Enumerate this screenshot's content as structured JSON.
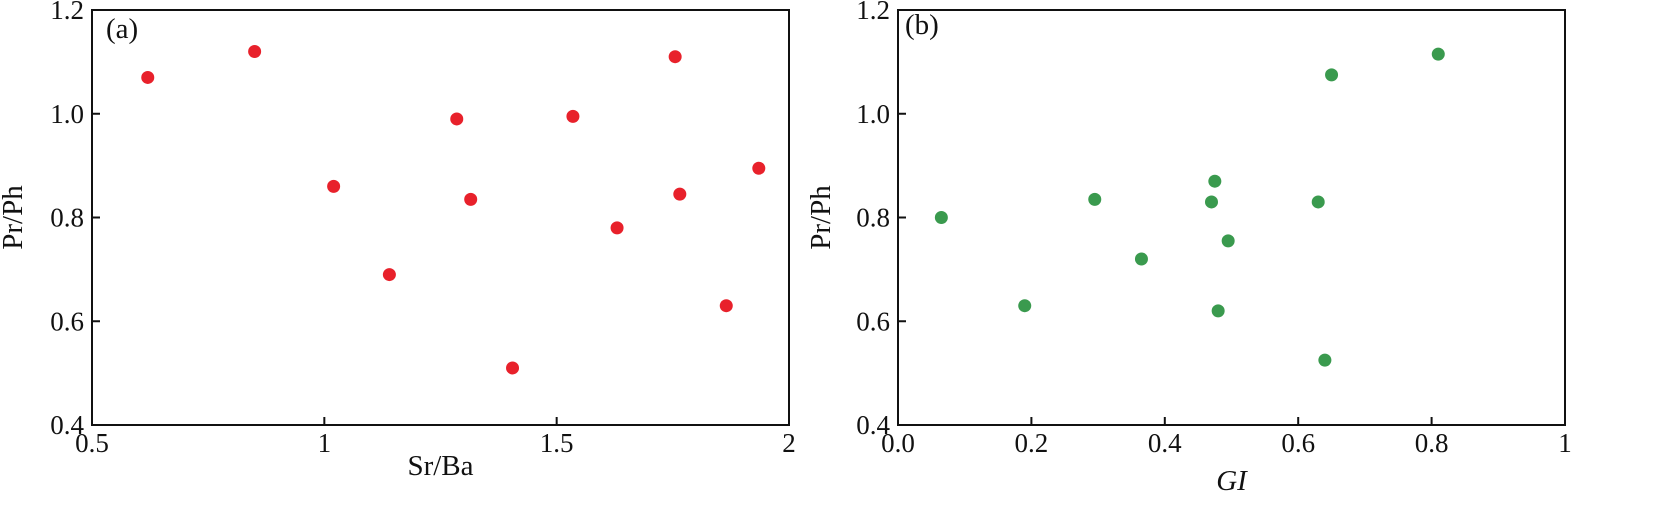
{
  "chart_data": [
    {
      "type": "scatter",
      "panel_label": "(a)",
      "xlabel": "Sr/Ba",
      "xlabel_italic": false,
      "ylabel": "Pr/Ph",
      "xlim": [
        0.5,
        2
      ],
      "ylim": [
        0.4,
        1.2
      ],
      "xticks": [
        0.5,
        1,
        1.5,
        2
      ],
      "xtick_labels": [
        "0.5",
        "1",
        "1.5",
        "2"
      ],
      "yticks": [
        0.4,
        0.6,
        0.8,
        1.0,
        1.2
      ],
      "ytick_labels": [
        "0.4",
        "0.6",
        "0.8",
        "1.0",
        "1.2"
      ],
      "grid": false,
      "marker_color": "#e8212b",
      "points": [
        {
          "x": 0.62,
          "y": 1.07
        },
        {
          "x": 0.85,
          "y": 1.12
        },
        {
          "x": 1.02,
          "y": 0.86
        },
        {
          "x": 1.14,
          "y": 0.69
        },
        {
          "x": 1.285,
          "y": 0.99
        },
        {
          "x": 1.315,
          "y": 0.835
        },
        {
          "x": 1.405,
          "y": 0.51
        },
        {
          "x": 1.535,
          "y": 0.995
        },
        {
          "x": 1.63,
          "y": 0.78
        },
        {
          "x": 1.755,
          "y": 1.11
        },
        {
          "x": 1.765,
          "y": 0.845
        },
        {
          "x": 1.865,
          "y": 0.63
        },
        {
          "x": 1.935,
          "y": 0.895
        }
      ]
    },
    {
      "type": "scatter",
      "panel_label": "(b)",
      "xlabel": "GI",
      "xlabel_italic": true,
      "ylabel": "Pr/Ph",
      "xlim": [
        0,
        1
      ],
      "ylim": [
        0.4,
        1.2
      ],
      "xticks": [
        0,
        0.2,
        0.4,
        0.6,
        0.8,
        1
      ],
      "xtick_labels": [
        "0.0",
        "0.2",
        "0.4",
        "0.6",
        "0.8",
        "1"
      ],
      "yticks": [
        0.4,
        0.6,
        0.8,
        1.0,
        1.2
      ],
      "ytick_labels": [
        "0.4",
        "0.6",
        "0.8",
        "1.0",
        "1.2"
      ],
      "grid": false,
      "marker_color": "#3a9a4e",
      "points": [
        {
          "x": 0.065,
          "y": 0.8
        },
        {
          "x": 0.19,
          "y": 0.63
        },
        {
          "x": 0.295,
          "y": 0.835
        },
        {
          "x": 0.365,
          "y": 0.72
        },
        {
          "x": 0.47,
          "y": 0.83
        },
        {
          "x": 0.475,
          "y": 0.87
        },
        {
          "x": 0.48,
          "y": 0.62
        },
        {
          "x": 0.495,
          "y": 0.755
        },
        {
          "x": 0.63,
          "y": 0.83
        },
        {
          "x": 0.64,
          "y": 0.525
        },
        {
          "x": 0.65,
          "y": 1.075
        },
        {
          "x": 0.81,
          "y": 1.115
        }
      ]
    }
  ]
}
